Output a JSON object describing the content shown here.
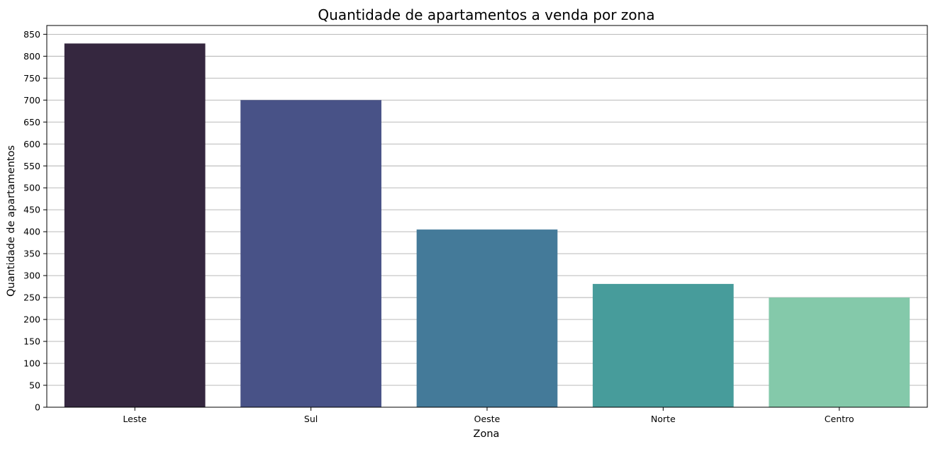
{
  "chart_data": {
    "type": "bar",
    "title": "Quantidade de apartamentos a venda por zona",
    "xlabel": "Zona",
    "ylabel": "Quantidade de apartamentos",
    "categories": [
      "Leste",
      "Sul",
      "Oeste",
      "Norte",
      "Centro"
    ],
    "values": [
      829,
      700,
      405,
      281,
      250
    ],
    "colors": [
      "#35273f",
      "#485287",
      "#447a99",
      "#479c9b",
      "#84c9aa"
    ],
    "ylim": [
      0,
      870
    ],
    "yticks": [
      0,
      50,
      100,
      150,
      200,
      250,
      300,
      350,
      400,
      450,
      500,
      550,
      600,
      650,
      700,
      750,
      800,
      850
    ],
    "grid": "y",
    "grid_color": "#b0b0b0",
    "legend": "none"
  }
}
